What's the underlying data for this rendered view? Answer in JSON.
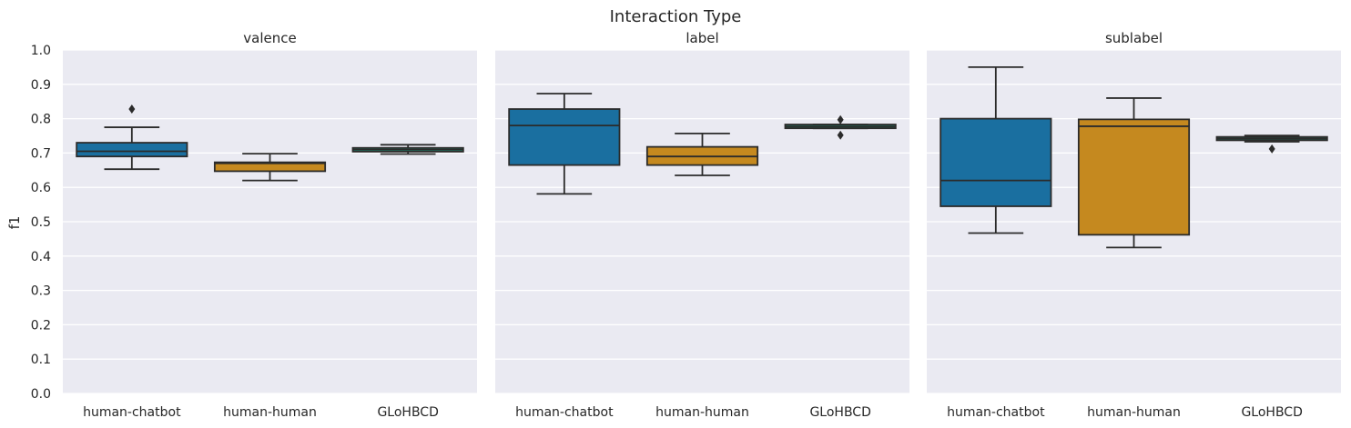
{
  "figure": {
    "suptitle": "Interaction Type",
    "ylabel": "f1"
  },
  "chart_data": [
    {
      "type": "box",
      "title": "valence",
      "categories": [
        "human-chatbot",
        "human-human",
        "GLoHBCD"
      ],
      "ylim": [
        0,
        1
      ],
      "yticks": [
        "0.0",
        "0.1",
        "0.2",
        "0.3",
        "0.4",
        "0.5",
        "0.6",
        "0.7",
        "0.8",
        "0.9",
        "1.0"
      ],
      "grid": true,
      "boxes": [
        {
          "category": "human-chatbot",
          "color": "#1a6fa0",
          "whisker_low": 0.653,
          "q1": 0.69,
          "median": 0.705,
          "q3": 0.73,
          "whisker_high": 0.775,
          "outliers": [
            0.828
          ]
        },
        {
          "category": "human-human",
          "color": "#c5891f",
          "whisker_low": 0.62,
          "q1": 0.647,
          "median": 0.67,
          "q3": 0.673,
          "whisker_high": 0.698,
          "outliers": []
        },
        {
          "category": "GLoHBCD",
          "color": "#1b8a6e",
          "whisker_low": 0.697,
          "q1": 0.704,
          "median": 0.71,
          "q3": 0.715,
          "whisker_high": 0.724,
          "outliers": []
        }
      ]
    },
    {
      "type": "box",
      "title": "label",
      "categories": [
        "human-chatbot",
        "human-human",
        "GLoHBCD"
      ],
      "ylim": [
        0,
        1
      ],
      "yticks": [
        "0.0",
        "0.1",
        "0.2",
        "0.3",
        "0.4",
        "0.5",
        "0.6",
        "0.7",
        "0.8",
        "0.9",
        "1.0"
      ],
      "grid": true,
      "boxes": [
        {
          "category": "human-chatbot",
          "color": "#1a6fa0",
          "whisker_low": 0.581,
          "q1": 0.665,
          "median": 0.78,
          "q3": 0.828,
          "whisker_high": 0.873,
          "outliers": []
        },
        {
          "category": "human-human",
          "color": "#c5891f",
          "whisker_low": 0.635,
          "q1": 0.665,
          "median": 0.69,
          "q3": 0.718,
          "whisker_high": 0.757,
          "outliers": []
        },
        {
          "category": "GLoHBCD",
          "color": "#1b8a6e",
          "whisker_low": 0.772,
          "q1": 0.772,
          "median": 0.777,
          "q3": 0.783,
          "whisker_high": 0.783,
          "outliers": [
            0.797,
            0.752
          ]
        }
      ]
    },
    {
      "type": "box",
      "title": "sublabel",
      "categories": [
        "human-chatbot",
        "human-human",
        "GLoHBCD"
      ],
      "ylim": [
        0,
        1
      ],
      "yticks": [
        "0.0",
        "0.1",
        "0.2",
        "0.3",
        "0.4",
        "0.5",
        "0.6",
        "0.7",
        "0.8",
        "0.9",
        "1.0"
      ],
      "grid": true,
      "boxes": [
        {
          "category": "human-chatbot",
          "color": "#1a6fa0",
          "whisker_low": 0.467,
          "q1": 0.545,
          "median": 0.62,
          "q3": 0.8,
          "whisker_high": 0.95,
          "outliers": []
        },
        {
          "category": "human-human",
          "color": "#c5891f",
          "whisker_low": 0.425,
          "q1": 0.462,
          "median": 0.778,
          "q3": 0.798,
          "whisker_high": 0.86,
          "outliers": []
        },
        {
          "category": "GLoHBCD",
          "color": "#1b8a6e",
          "whisker_low": 0.733,
          "q1": 0.737,
          "median": 0.742,
          "q3": 0.747,
          "whisker_high": 0.751,
          "outliers": [
            0.712
          ]
        }
      ]
    }
  ],
  "style": {
    "plot_background": "#eaeaf2",
    "grid_color": "#ffffff",
    "box_edge": "#2b2b2b"
  }
}
